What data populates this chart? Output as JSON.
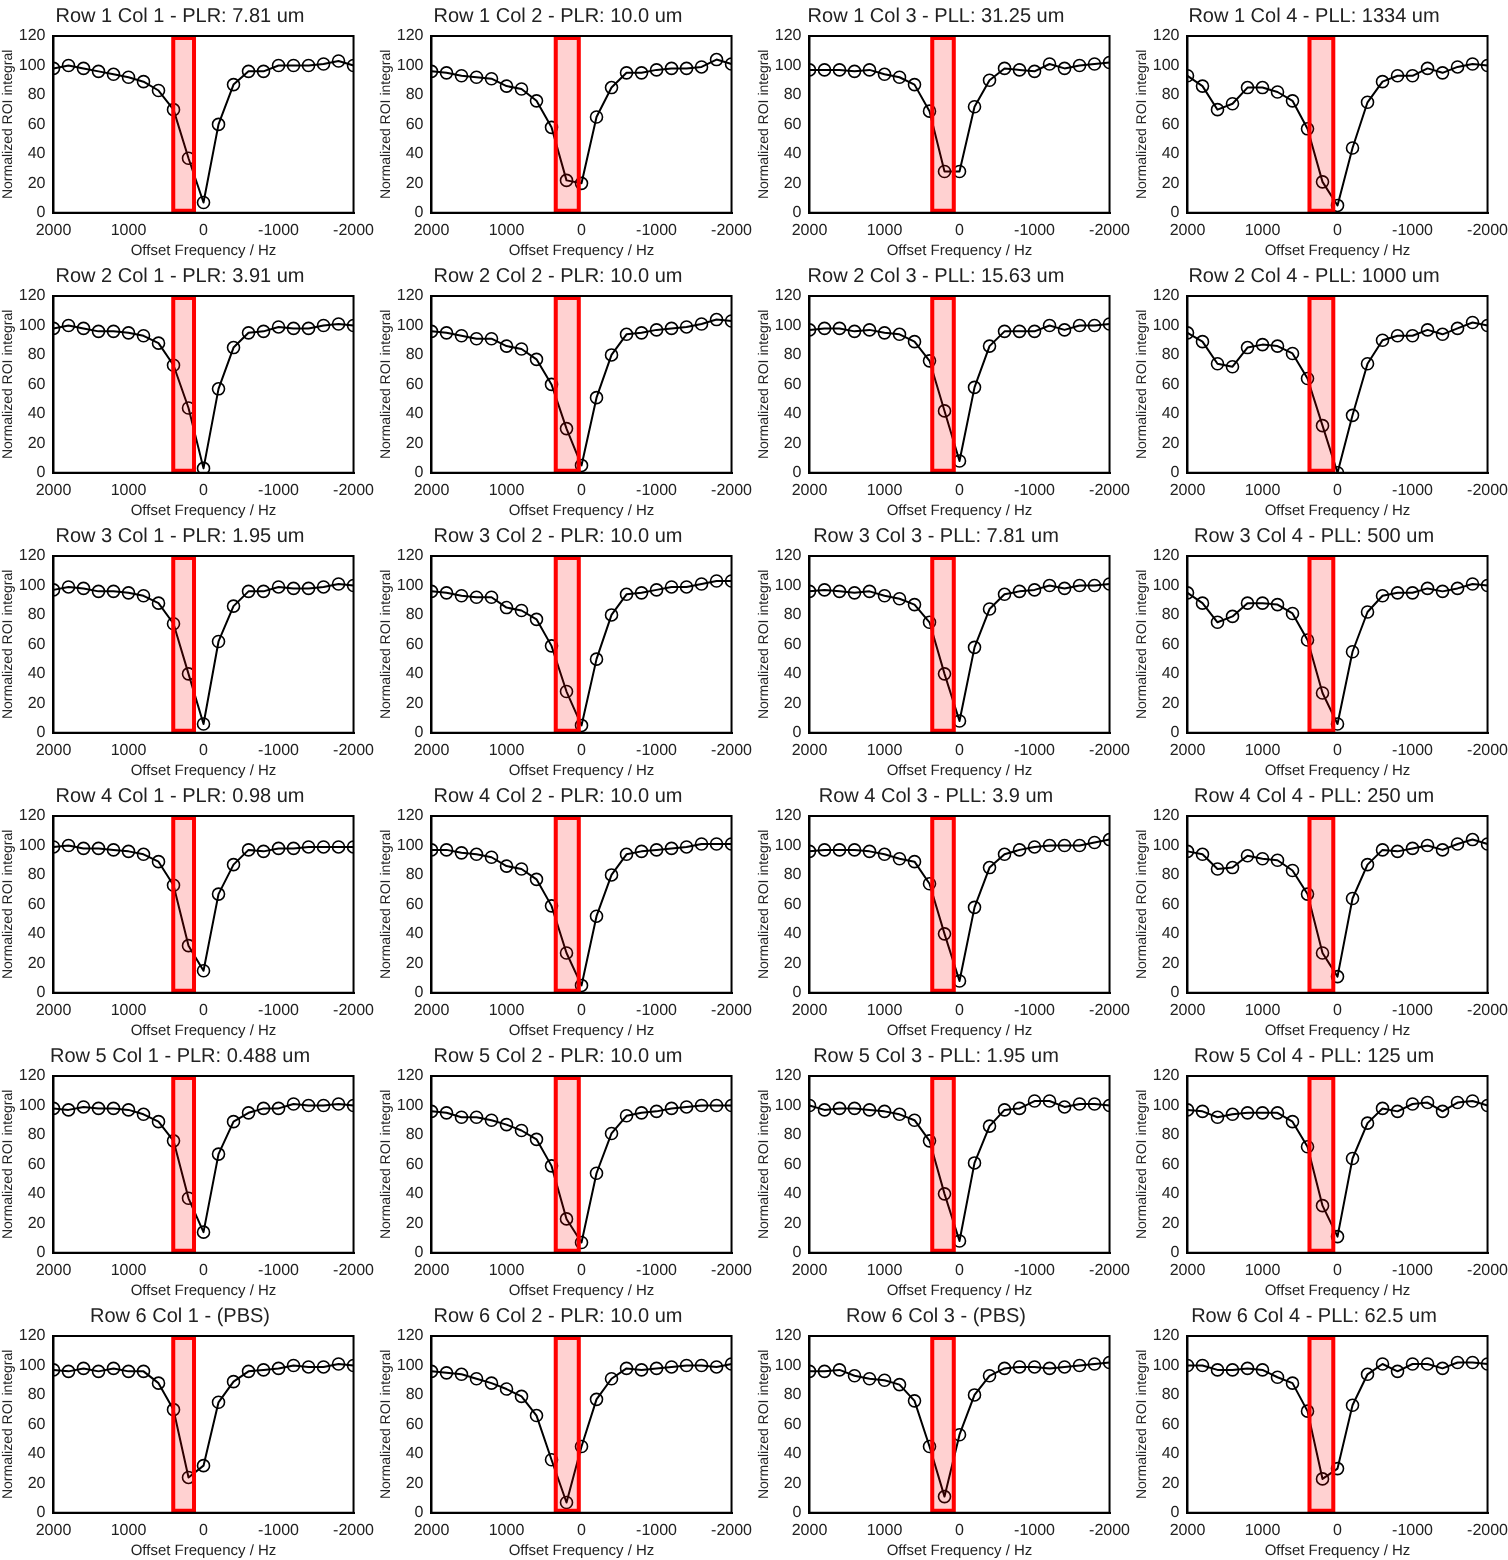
{
  "chart_data": [
    {
      "type": "line",
      "title": "Row 1 Col 1 - PLR: 7.81 um",
      "xlabel": "Offset Frequency / Hz",
      "ylabel": "Normalized ROI integral",
      "x": [
        2000,
        1800,
        1600,
        1400,
        1200,
        1000,
        800,
        600,
        400,
        200,
        0,
        -200,
        -400,
        -600,
        -800,
        -1000,
        -1200,
        -1400,
        -1600,
        -1800,
        -2000
      ],
      "color": "#000000",
      "marker": "circle",
      "xlim": [
        2000,
        -2000
      ],
      "ylim": [
        0,
        120
      ],
      "xticks": [
        2000,
        1000,
        0,
        -1000,
        -2000
      ],
      "yticks": [
        0,
        20,
        40,
        60,
        80,
        100,
        120
      ],
      "values": [
        98,
        100,
        98,
        96,
        94,
        92,
        89,
        83,
        70,
        37,
        7,
        60,
        87,
        96,
        96,
        100,
        100,
        100,
        101,
        103,
        100
      ],
      "bands": [
        {
          "axis": "x",
          "from": 430,
          "to": 100,
          "color": "#ff0000"
        }
      ]
    },
    {
      "type": "line",
      "title": "Row 1 Col 2 - PLR: 10.0 um",
      "xlabel": "Offset Frequency / Hz",
      "ylabel": "Normalized ROI integral",
      "x": [
        2000,
        1800,
        1600,
        1400,
        1200,
        1000,
        800,
        600,
        400,
        200,
        0,
        -200,
        -400,
        -600,
        -800,
        -1000,
        -1200,
        -1400,
        -1600,
        -1800,
        -2000
      ],
      "color": "#000000",
      "marker": "circle",
      "xlim": [
        2000,
        -2000
      ],
      "ylim": [
        0,
        120
      ],
      "xticks": [
        2000,
        1000,
        0,
        -1000,
        -2000
      ],
      "yticks": [
        0,
        20,
        40,
        60,
        80,
        100,
        120
      ],
      "values": [
        96,
        95,
        93,
        92,
        91,
        86,
        84,
        76,
        58,
        22,
        20,
        65,
        85,
        95,
        95,
        97,
        98,
        98,
        99,
        104,
        101
      ],
      "bands": [
        {
          "axis": "x",
          "from": 370,
          "to": 10,
          "color": "#ff0000"
        }
      ]
    },
    {
      "type": "line",
      "title": "Row 1 Col 3 - PLL: 31.25 um",
      "xlabel": "Offset Frequency / Hz",
      "ylabel": "Normalized ROI integral",
      "x": [
        2000,
        1800,
        1600,
        1400,
        1200,
        1000,
        800,
        600,
        400,
        200,
        0,
        -200,
        -400,
        -600,
        -800,
        -1000,
        -1200,
        -1400,
        -1600,
        -1800,
        -2000
      ],
      "color": "#000000",
      "marker": "circle",
      "xlim": [
        2000,
        -2000
      ],
      "ylim": [
        0,
        120
      ],
      "xticks": [
        2000,
        1000,
        0,
        -1000,
        -2000
      ],
      "yticks": [
        0,
        20,
        40,
        60,
        80,
        100,
        120
      ],
      "values": [
        97,
        97,
        97,
        96,
        97,
        94,
        92,
        87,
        69,
        28,
        28,
        72,
        90,
        98,
        97,
        96,
        101,
        98,
        100,
        101,
        102
      ],
      "bands": [
        {
          "axis": "x",
          "from": 390,
          "to": 50,
          "color": "#ff0000"
        }
      ]
    },
    {
      "type": "line",
      "title": "Row 1 Col 4 - PLL: 1334 um",
      "xlabel": "Offset Frequency / Hz",
      "ylabel": "Normalized ROI integral",
      "x": [
        2000,
        1800,
        1600,
        1400,
        1200,
        1000,
        800,
        600,
        400,
        200,
        0,
        -200,
        -400,
        -600,
        -800,
        -1000,
        -1200,
        -1400,
        -1600,
        -1800,
        -2000
      ],
      "color": "#000000",
      "marker": "circle",
      "xlim": [
        2000,
        -2000
      ],
      "ylim": [
        0,
        120
      ],
      "xticks": [
        2000,
        1000,
        0,
        -1000,
        -2000
      ],
      "yticks": [
        0,
        20,
        40,
        60,
        80,
        100,
        120
      ],
      "values": [
        93,
        86,
        70,
        74,
        85,
        85,
        82,
        76,
        57,
        21,
        5,
        44,
        75,
        89,
        93,
        93,
        98,
        95,
        99,
        101,
        100
      ],
      "bands": [
        {
          "axis": "x",
          "from": 400,
          "to": 30,
          "color": "#ff0000"
        }
      ]
    },
    {
      "type": "line",
      "title": "Row 2 Col 1 - PLR: 3.91 um",
      "xlabel": "Offset Frequency / Hz",
      "ylabel": "Normalized ROI integral",
      "x": [
        2000,
        1800,
        1600,
        1400,
        1200,
        1000,
        800,
        600,
        400,
        200,
        0,
        -200,
        -400,
        -600,
        -800,
        -1000,
        -1200,
        -1400,
        -1600,
        -1800,
        -2000
      ],
      "color": "#000000",
      "marker": "circle",
      "xlim": [
        2000,
        -2000
      ],
      "ylim": [
        0,
        120
      ],
      "xticks": [
        2000,
        1000,
        0,
        -1000,
        -2000
      ],
      "yticks": [
        0,
        20,
        40,
        60,
        80,
        100,
        120
      ],
      "values": [
        98,
        100,
        98,
        96,
        96,
        95,
        93,
        88,
        73,
        44,
        3,
        57,
        85,
        95,
        96,
        99,
        98,
        98,
        100,
        101,
        100
      ],
      "bands": [
        {
          "axis": "x",
          "from": 430,
          "to": 100,
          "color": "#ff0000"
        }
      ]
    },
    {
      "type": "line",
      "title": "Row 2 Col 2 - PLR: 10.0 um",
      "xlabel": "Offset Frequency / Hz",
      "ylabel": "Normalized ROI integral",
      "x": [
        2000,
        1800,
        1600,
        1400,
        1200,
        1000,
        800,
        600,
        400,
        200,
        0,
        -200,
        -400,
        -600,
        -800,
        -1000,
        -1200,
        -1400,
        -1600,
        -1800,
        -2000
      ],
      "color": "#000000",
      "marker": "circle",
      "xlim": [
        2000,
        -2000
      ],
      "ylim": [
        0,
        120
      ],
      "xticks": [
        2000,
        1000,
        0,
        -1000,
        -2000
      ],
      "yticks": [
        0,
        20,
        40,
        60,
        80,
        100,
        120
      ],
      "values": [
        96,
        95,
        93,
        91,
        91,
        86,
        84,
        77,
        60,
        30,
        5,
        51,
        80,
        94,
        95,
        97,
        98,
        99,
        101,
        104,
        103
      ],
      "bands": [
        {
          "axis": "x",
          "from": 370,
          "to": 10,
          "color": "#ff0000"
        }
      ]
    },
    {
      "type": "line",
      "title": "Row 2 Col 3 - PLL: 15.63 um",
      "xlabel": "Offset Frequency / Hz",
      "ylabel": "Normalized ROI integral",
      "x": [
        2000,
        1800,
        1600,
        1400,
        1200,
        1000,
        800,
        600,
        400,
        200,
        0,
        -200,
        -400,
        -600,
        -800,
        -1000,
        -1200,
        -1400,
        -1600,
        -1800,
        -2000
      ],
      "color": "#000000",
      "marker": "circle",
      "xlim": [
        2000,
        -2000
      ],
      "ylim": [
        0,
        120
      ],
      "xticks": [
        2000,
        1000,
        0,
        -1000,
        -2000
      ],
      "yticks": [
        0,
        20,
        40,
        60,
        80,
        100,
        120
      ],
      "values": [
        97,
        98,
        98,
        96,
        97,
        95,
        94,
        89,
        76,
        42,
        8,
        58,
        86,
        96,
        96,
        96,
        100,
        97,
        100,
        100,
        101
      ],
      "bands": [
        {
          "axis": "x",
          "from": 390,
          "to": 50,
          "color": "#ff0000"
        }
      ]
    },
    {
      "type": "line",
      "title": "Row 2 Col 4 - PLL: 1000 um",
      "xlabel": "Offset Frequency / Hz",
      "ylabel": "Normalized ROI integral",
      "x": [
        2000,
        1800,
        1600,
        1400,
        1200,
        1000,
        800,
        600,
        400,
        200,
        0,
        -200,
        -400,
        -600,
        -800,
        -1000,
        -1200,
        -1400,
        -1600,
        -1800,
        -2000
      ],
      "color": "#000000",
      "marker": "circle",
      "xlim": [
        2000,
        -2000
      ],
      "ylim": [
        0,
        120
      ],
      "xticks": [
        2000,
        1000,
        0,
        -1000,
        -2000
      ],
      "yticks": [
        0,
        20,
        40,
        60,
        80,
        100,
        120
      ],
      "values": [
        95,
        89,
        74,
        72,
        85,
        87,
        86,
        81,
        64,
        32,
        0,
        39,
        74,
        90,
        93,
        93,
        97,
        94,
        98,
        102,
        100
      ],
      "bands": [
        {
          "axis": "x",
          "from": 400,
          "to": 30,
          "color": "#ff0000"
        }
      ]
    },
    {
      "type": "line",
      "title": "Row 3 Col 1 - PLR: 1.95 um",
      "xlabel": "Offset Frequency / Hz",
      "ylabel": "Normalized ROI integral",
      "x": [
        2000,
        1800,
        1600,
        1400,
        1200,
        1000,
        800,
        600,
        400,
        200,
        0,
        -200,
        -400,
        -600,
        -800,
        -1000,
        -1200,
        -1400,
        -1600,
        -1800,
        -2000
      ],
      "color": "#000000",
      "marker": "circle",
      "xlim": [
        2000,
        -2000
      ],
      "ylim": [
        0,
        120
      ],
      "xticks": [
        2000,
        1000,
        0,
        -1000,
        -2000
      ],
      "yticks": [
        0,
        20,
        40,
        60,
        80,
        100,
        120
      ],
      "values": [
        97,
        99,
        98,
        96,
        96,
        95,
        93,
        88,
        74,
        40,
        6,
        62,
        86,
        96,
        96,
        99,
        98,
        98,
        99,
        101,
        100
      ],
      "bands": [
        {
          "axis": "x",
          "from": 430,
          "to": 100,
          "color": "#ff0000"
        }
      ]
    },
    {
      "type": "line",
      "title": "Row 3 Col 2 - PLR: 10.0 um",
      "xlabel": "Offset Frequency / Hz",
      "ylabel": "Normalized ROI integral",
      "x": [
        2000,
        1800,
        1600,
        1400,
        1200,
        1000,
        800,
        600,
        400,
        200,
        0,
        -200,
        -400,
        -600,
        -800,
        -1000,
        -1200,
        -1400,
        -1600,
        -1800,
        -2000
      ],
      "color": "#000000",
      "marker": "circle",
      "xlim": [
        2000,
        -2000
      ],
      "ylim": [
        0,
        120
      ],
      "xticks": [
        2000,
        1000,
        0,
        -1000,
        -2000
      ],
      "yticks": [
        0,
        20,
        40,
        60,
        80,
        100,
        120
      ],
      "values": [
        96,
        95,
        93,
        92,
        92,
        85,
        83,
        77,
        59,
        28,
        5,
        50,
        80,
        94,
        95,
        97,
        99,
        99,
        101,
        103,
        103
      ],
      "bands": [
        {
          "axis": "x",
          "from": 370,
          "to": 10,
          "color": "#ff0000"
        }
      ]
    },
    {
      "type": "line",
      "title": "Row 3 Col 3 - PLL: 7.81 um",
      "xlabel": "Offset Frequency / Hz",
      "ylabel": "Normalized ROI integral",
      "x": [
        2000,
        1800,
        1600,
        1400,
        1200,
        1000,
        800,
        600,
        400,
        200,
        0,
        -200,
        -400,
        -600,
        -800,
        -1000,
        -1200,
        -1400,
        -1600,
        -1800,
        -2000
      ],
      "color": "#000000",
      "marker": "circle",
      "xlim": [
        2000,
        -2000
      ],
      "ylim": [
        0,
        120
      ],
      "xticks": [
        2000,
        1000,
        0,
        -1000,
        -2000
      ],
      "yticks": [
        0,
        20,
        40,
        60,
        80,
        100,
        120
      ],
      "values": [
        96,
        97,
        96,
        95,
        96,
        93,
        91,
        87,
        75,
        40,
        8,
        58,
        84,
        94,
        96,
        97,
        100,
        98,
        100,
        100,
        101
      ],
      "bands": [
        {
          "axis": "x",
          "from": 390,
          "to": 50,
          "color": "#ff0000"
        }
      ]
    },
    {
      "type": "line",
      "title": "Row 3 Col 4 - PLL: 500 um",
      "xlabel": "Offset Frequency / Hz",
      "ylabel": "Normalized ROI integral",
      "x": [
        2000,
        1800,
        1600,
        1400,
        1200,
        1000,
        800,
        600,
        400,
        200,
        0,
        -200,
        -400,
        -600,
        -800,
        -1000,
        -1200,
        -1400,
        -1600,
        -1800,
        -2000
      ],
      "color": "#000000",
      "marker": "circle",
      "xlim": [
        2000,
        -2000
      ],
      "ylim": [
        0,
        120
      ],
      "xticks": [
        2000,
        1000,
        0,
        -1000,
        -2000
      ],
      "yticks": [
        0,
        20,
        40,
        60,
        80,
        100,
        120
      ],
      "values": [
        95,
        88,
        75,
        79,
        88,
        88,
        87,
        81,
        63,
        27,
        6,
        55,
        82,
        93,
        95,
        95,
        98,
        96,
        98,
        101,
        100
      ],
      "bands": [
        {
          "axis": "x",
          "from": 400,
          "to": 30,
          "color": "#ff0000"
        }
      ]
    },
    {
      "type": "line",
      "title": "Row 4 Col 1 - PLR: 0.98 um",
      "xlabel": "Offset Frequency / Hz",
      "ylabel": "Normalized ROI integral",
      "x": [
        2000,
        1800,
        1600,
        1400,
        1200,
        1000,
        800,
        600,
        400,
        200,
        0,
        -200,
        -400,
        -600,
        -800,
        -1000,
        -1200,
        -1400,
        -1600,
        -1800,
        -2000
      ],
      "color": "#000000",
      "marker": "circle",
      "xlim": [
        2000,
        -2000
      ],
      "ylim": [
        0,
        120
      ],
      "xticks": [
        2000,
        1000,
        0,
        -1000,
        -2000
      ],
      "yticks": [
        0,
        20,
        40,
        60,
        80,
        100,
        120
      ],
      "values": [
        99,
        100,
        98,
        98,
        97,
        96,
        94,
        89,
        73,
        32,
        15,
        67,
        87,
        97,
        96,
        98,
        98,
        99,
        99,
        99,
        99
      ],
      "bands": [
        {
          "axis": "x",
          "from": 430,
          "to": 100,
          "color": "#ff0000"
        }
      ]
    },
    {
      "type": "line",
      "title": "Row 4 Col 2 - PLR: 10.0 um",
      "xlabel": "Offset Frequency / Hz",
      "ylabel": "Normalized ROI integral",
      "x": [
        2000,
        1800,
        1600,
        1400,
        1200,
        1000,
        800,
        600,
        400,
        200,
        0,
        -200,
        -400,
        -600,
        -800,
        -1000,
        -1200,
        -1400,
        -1600,
        -1800,
        -2000
      ],
      "color": "#000000",
      "marker": "circle",
      "xlim": [
        2000,
        -2000
      ],
      "ylim": [
        0,
        120
      ],
      "xticks": [
        2000,
        1000,
        0,
        -1000,
        -2000
      ],
      "yticks": [
        0,
        20,
        40,
        60,
        80,
        100,
        120
      ],
      "values": [
        97,
        97,
        95,
        94,
        92,
        86,
        84,
        77,
        59,
        27,
        5,
        52,
        80,
        94,
        96,
        97,
        98,
        99,
        101,
        101,
        101
      ],
      "bands": [
        {
          "axis": "x",
          "from": 370,
          "to": 10,
          "color": "#ff0000"
        }
      ]
    },
    {
      "type": "line",
      "title": "Row 4 Col 3 - PLL: 3.9 um",
      "xlabel": "Offset Frequency / Hz",
      "ylabel": "Normalized ROI integral",
      "x": [
        2000,
        1800,
        1600,
        1400,
        1200,
        1000,
        800,
        600,
        400,
        200,
        0,
        -200,
        -400,
        -600,
        -800,
        -1000,
        -1200,
        -1400,
        -1600,
        -1800,
        -2000
      ],
      "color": "#000000",
      "marker": "circle",
      "xlim": [
        2000,
        -2000
      ],
      "ylim": [
        0,
        120
      ],
      "xticks": [
        2000,
        1000,
        0,
        -1000,
        -2000
      ],
      "yticks": [
        0,
        20,
        40,
        60,
        80,
        100,
        120
      ],
      "values": [
        96,
        97,
        97,
        97,
        96,
        94,
        91,
        89,
        74,
        40,
        8,
        58,
        85,
        94,
        97,
        99,
        100,
        100,
        100,
        102,
        104
      ],
      "bands": [
        {
          "axis": "x",
          "from": 390,
          "to": 50,
          "color": "#ff0000"
        }
      ]
    },
    {
      "type": "line",
      "title": "Row 4 Col 4 - PLL: 250 um",
      "xlabel": "Offset Frequency / Hz",
      "ylabel": "Normalized ROI integral",
      "x": [
        2000,
        1800,
        1600,
        1400,
        1200,
        1000,
        800,
        600,
        400,
        200,
        0,
        -200,
        -400,
        -600,
        -800,
        -1000,
        -1200,
        -1400,
        -1600,
        -1800,
        -2000
      ],
      "color": "#000000",
      "marker": "circle",
      "xlim": [
        2000,
        -2000
      ],
      "ylim": [
        0,
        120
      ],
      "xticks": [
        2000,
        1000,
        0,
        -1000,
        -2000
      ],
      "yticks": [
        0,
        20,
        40,
        60,
        80,
        100,
        120
      ],
      "values": [
        96,
        94,
        84,
        85,
        93,
        91,
        90,
        83,
        67,
        27,
        11,
        64,
        87,
        97,
        96,
        98,
        100,
        97,
        101,
        104,
        101
      ],
      "bands": [
        {
          "axis": "x",
          "from": 400,
          "to": 30,
          "color": "#ff0000"
        }
      ]
    },
    {
      "type": "line",
      "title": "Row 5 Col 1 - PLR: 0.488 um",
      "xlabel": "Offset Frequency / Hz",
      "ylabel": "Normalized ROI integral",
      "x": [
        2000,
        1800,
        1600,
        1400,
        1200,
        1000,
        800,
        600,
        400,
        200,
        0,
        -200,
        -400,
        -600,
        -800,
        -1000,
        -1200,
        -1400,
        -1600,
        -1800,
        -2000
      ],
      "color": "#000000",
      "marker": "circle",
      "xlim": [
        2000,
        -2000
      ],
      "ylim": [
        0,
        120
      ],
      "xticks": [
        2000,
        1000,
        0,
        -1000,
        -2000
      ],
      "yticks": [
        0,
        20,
        40,
        60,
        80,
        100,
        120
      ],
      "values": [
        98,
        97,
        99,
        98,
        98,
        97,
        94,
        89,
        76,
        37,
        14,
        67,
        89,
        95,
        98,
        98,
        101,
        100,
        100,
        101,
        100
      ],
      "bands": [
        {
          "axis": "x",
          "from": 430,
          "to": 100,
          "color": "#ff0000"
        }
      ]
    },
    {
      "type": "line",
      "title": "Row 5 Col 2 - PLR: 10.0 um",
      "xlabel": "Offset Frequency / Hz",
      "ylabel": "Normalized ROI integral",
      "x": [
        2000,
        1800,
        1600,
        1400,
        1200,
        1000,
        800,
        600,
        400,
        200,
        0,
        -200,
        -400,
        -600,
        -800,
        -1000,
        -1200,
        -1400,
        -1600,
        -1800,
        -2000
      ],
      "color": "#000000",
      "marker": "circle",
      "xlim": [
        2000,
        -2000
      ],
      "ylim": [
        0,
        120
      ],
      "xticks": [
        2000,
        1000,
        0,
        -1000,
        -2000
      ],
      "yticks": [
        0,
        20,
        40,
        60,
        80,
        100,
        120
      ],
      "values": [
        96,
        95,
        92,
        92,
        90,
        87,
        83,
        77,
        59,
        23,
        7,
        54,
        81,
        93,
        95,
        96,
        98,
        99,
        100,
        100,
        100
      ],
      "bands": [
        {
          "axis": "x",
          "from": 370,
          "to": 10,
          "color": "#ff0000"
        }
      ]
    },
    {
      "type": "line",
      "title": "Row 5 Col 3 - PLL: 1.95 um",
      "xlabel": "Offset Frequency / Hz",
      "ylabel": "Normalized ROI integral",
      "x": [
        2000,
        1800,
        1600,
        1400,
        1200,
        1000,
        800,
        600,
        400,
        200,
        0,
        -200,
        -400,
        -600,
        -800,
        -1000,
        -1200,
        -1400,
        -1600,
        -1800,
        -2000
      ],
      "color": "#000000",
      "marker": "circle",
      "xlim": [
        2000,
        -2000
      ],
      "ylim": [
        0,
        120
      ],
      "xticks": [
        2000,
        1000,
        0,
        -1000,
        -2000
      ],
      "yticks": [
        0,
        20,
        40,
        60,
        80,
        100,
        120
      ],
      "values": [
        100,
        97,
        98,
        98,
        97,
        96,
        94,
        90,
        76,
        40,
        8,
        61,
        86,
        97,
        98,
        103,
        103,
        99,
        101,
        101,
        100
      ],
      "bands": [
        {
          "axis": "x",
          "from": 390,
          "to": 50,
          "color": "#ff0000"
        }
      ]
    },
    {
      "type": "line",
      "title": "Row 5 Col 4 - PLL: 125 um",
      "xlabel": "Offset Frequency / Hz",
      "ylabel": "Normalized ROI integral",
      "x": [
        2000,
        1800,
        1600,
        1400,
        1200,
        1000,
        800,
        600,
        400,
        200,
        0,
        -200,
        -400,
        -600,
        -800,
        -1000,
        -1200,
        -1400,
        -1600,
        -1800,
        -2000
      ],
      "color": "#000000",
      "marker": "circle",
      "xlim": [
        2000,
        -2000
      ],
      "ylim": [
        0,
        120
      ],
      "xticks": [
        2000,
        1000,
        0,
        -1000,
        -2000
      ],
      "yticks": [
        0,
        20,
        40,
        60,
        80,
        100,
        120
      ],
      "values": [
        97,
        96,
        92,
        94,
        95,
        95,
        95,
        89,
        72,
        32,
        11,
        64,
        88,
        98,
        96,
        101,
        102,
        96,
        102,
        103,
        100
      ],
      "bands": [
        {
          "axis": "x",
          "from": 400,
          "to": 30,
          "color": "#ff0000"
        }
      ]
    },
    {
      "type": "line",
      "title": "Row 6 Col 1 - (PBS)",
      "xlabel": "Offset Frequency / Hz",
      "ylabel": "Normalized ROI integral",
      "x": [
        2000,
        1800,
        1600,
        1400,
        1200,
        1000,
        800,
        600,
        400,
        200,
        0,
        -200,
        -400,
        -600,
        -800,
        -1000,
        -1200,
        -1400,
        -1600,
        -1800,
        -2000
      ],
      "color": "#000000",
      "marker": "circle",
      "xlim": [
        2000,
        -2000
      ],
      "ylim": [
        0,
        120
      ],
      "xticks": [
        2000,
        1000,
        0,
        -1000,
        -2000
      ],
      "yticks": [
        0,
        20,
        40,
        60,
        80,
        100,
        120
      ],
      "values": [
        97,
        96,
        98,
        96,
        98,
        96,
        96,
        88,
        70,
        24,
        32,
        75,
        89,
        96,
        97,
        98,
        100,
        99,
        99,
        101,
        100
      ],
      "bands": [
        {
          "axis": "x",
          "from": 430,
          "to": 100,
          "color": "#ff0000"
        }
      ]
    },
    {
      "type": "line",
      "title": "Row 6 Col 2 - PLR: 10.0 um",
      "xlabel": "Offset Frequency / Hz",
      "ylabel": "Normalized ROI integral",
      "x": [
        2000,
        1800,
        1600,
        1400,
        1200,
        1000,
        800,
        600,
        400,
        200,
        0,
        -200,
        -400,
        -600,
        -800,
        -1000,
        -1200,
        -1400,
        -1600,
        -1800,
        -2000
      ],
      "color": "#000000",
      "marker": "circle",
      "xlim": [
        2000,
        -2000
      ],
      "ylim": [
        0,
        120
      ],
      "xticks": [
        2000,
        1000,
        0,
        -1000,
        -2000
      ],
      "yticks": [
        0,
        20,
        40,
        60,
        80,
        100,
        120
      ],
      "values": [
        96,
        95,
        94,
        91,
        88,
        84,
        79,
        66,
        36,
        7,
        45,
        77,
        91,
        98,
        97,
        98,
        99,
        100,
        100,
        99,
        101
      ],
      "bands": [
        {
          "axis": "x",
          "from": 370,
          "to": 10,
          "color": "#ff0000"
        }
      ]
    },
    {
      "type": "line",
      "title": "Row 6 Col 3 - (PBS)",
      "xlabel": "Offset Frequency / Hz",
      "ylabel": "Normalized ROI integral",
      "x": [
        2000,
        1800,
        1600,
        1400,
        1200,
        1000,
        800,
        600,
        400,
        200,
        0,
        -200,
        -400,
        -600,
        -800,
        -1000,
        -1200,
        -1400,
        -1600,
        -1800,
        -2000
      ],
      "color": "#000000",
      "marker": "circle",
      "xlim": [
        2000,
        -2000
      ],
      "ylim": [
        0,
        120
      ],
      "xticks": [
        2000,
        1000,
        0,
        -1000,
        -2000
      ],
      "yticks": [
        0,
        20,
        40,
        60,
        80,
        100,
        120
      ],
      "values": [
        96,
        96,
        97,
        93,
        91,
        90,
        87,
        76,
        45,
        11,
        53,
        80,
        93,
        98,
        99,
        99,
        98,
        99,
        100,
        101,
        102
      ],
      "bands": [
        {
          "axis": "x",
          "from": 390,
          "to": 50,
          "color": "#ff0000"
        }
      ]
    },
    {
      "type": "line",
      "title": "Row 6 Col 4 - PLL: 62.5 um",
      "xlabel": "Offset Frequency / Hz",
      "ylabel": "Normalized ROI integral",
      "x": [
        2000,
        1800,
        1600,
        1400,
        1200,
        1000,
        800,
        600,
        400,
        200,
        0,
        -200,
        -400,
        -600,
        -800,
        -1000,
        -1200,
        -1400,
        -1600,
        -1800,
        -2000
      ],
      "color": "#000000",
      "marker": "circle",
      "xlim": [
        2000,
        -2000
      ],
      "ylim": [
        0,
        120
      ],
      "xticks": [
        2000,
        1000,
        0,
        -1000,
        -2000
      ],
      "yticks": [
        0,
        20,
        40,
        60,
        80,
        100,
        120
      ],
      "values": [
        100,
        100,
        97,
        97,
        98,
        97,
        92,
        88,
        69,
        23,
        30,
        73,
        94,
        101,
        96,
        101,
        101,
        98,
        102,
        102,
        101
      ],
      "bands": [
        {
          "axis": "x",
          "from": 400,
          "to": 30,
          "color": "#ff0000"
        }
      ]
    }
  ]
}
